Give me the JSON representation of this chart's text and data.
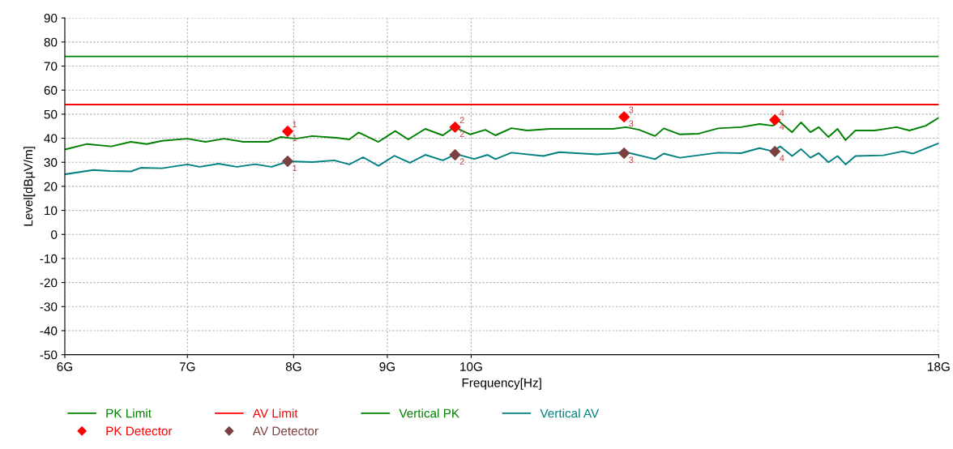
{
  "chart_data": {
    "type": "line",
    "xlabel": "Frequency[Hz]",
    "ylabel": "Level[dBµV/m]",
    "log": "x",
    "grid": true,
    "legend": "bottom",
    "xlim": [
      6,
      18
    ],
    "xticks": [
      {
        "value": 6,
        "label": "6G"
      },
      {
        "value": 7,
        "label": "7G"
      },
      {
        "value": 8,
        "label": "8G"
      },
      {
        "value": 9,
        "label": "9G"
      },
      {
        "value": 10,
        "label": "10G"
      },
      {
        "value": 18,
        "label": "18G"
      }
    ],
    "ylim": [
      -50,
      90
    ],
    "yticks": [
      -50,
      -40,
      -30,
      -20,
      -10,
      0,
      10,
      20,
      30,
      40,
      50,
      60,
      70,
      80,
      90
    ],
    "series": [
      {
        "name": "PK Limit",
        "color": "#008000",
        "x": [
          6,
          18
        ],
        "values": [
          74,
          74
        ]
      },
      {
        "name": "AV Limit",
        "color": "#ff0000",
        "x": [
          6,
          18
        ],
        "values": [
          54,
          54
        ]
      },
      {
        "name": "Vertical PK",
        "color": "#008000",
        "x": [
          6.0,
          6.17,
          6.36,
          6.52,
          6.65,
          6.78,
          7.0,
          7.16,
          7.33,
          7.51,
          7.75,
          7.87,
          8.02,
          8.19,
          8.44,
          8.58,
          8.68,
          8.9,
          9.09,
          9.24,
          9.44,
          9.65,
          9.79,
          9.99,
          10.18,
          10.31,
          10.52,
          10.73,
          11.04,
          11.48,
          11.95,
          12.15,
          12.35,
          12.6,
          12.74,
          13.0,
          13.31,
          13.64,
          14.04,
          14.37,
          14.61,
          14.72,
          14.97,
          15.14,
          15.32,
          15.48,
          15.67,
          15.85,
          16.01,
          16.21,
          16.61,
          17.07,
          17.35,
          17.71,
          18.0
        ],
        "values": [
          35.3,
          37.6,
          36.6,
          38.5,
          37.6,
          38.9,
          39.8,
          38.5,
          39.8,
          38.5,
          38.5,
          40.5,
          39.8,
          40.9,
          40.2,
          39.5,
          42.4,
          38.5,
          43.0,
          39.5,
          43.9,
          41.2,
          44.6,
          41.6,
          43.5,
          41.2,
          44.2,
          43.2,
          43.9,
          43.9,
          43.9,
          44.6,
          43.5,
          40.9,
          44.1,
          41.6,
          41.9,
          44.1,
          44.6,
          45.9,
          45.2,
          47.2,
          42.5,
          46.6,
          42.5,
          44.6,
          40.5,
          43.9,
          39.2,
          43.2,
          43.2,
          44.6,
          43.2,
          45.2,
          48.5
        ]
      },
      {
        "name": "Vertical AV",
        "color": "#008080",
        "x": [
          6.0,
          6.22,
          6.35,
          6.52,
          6.6,
          6.78,
          7.0,
          7.11,
          7.28,
          7.45,
          7.62,
          7.78,
          7.95,
          8.19,
          8.42,
          8.58,
          8.73,
          8.9,
          9.08,
          9.26,
          9.44,
          9.65,
          9.81,
          10.04,
          10.21,
          10.31,
          10.52,
          10.95,
          11.17,
          11.72,
          12.15,
          12.6,
          12.74,
          13.0,
          13.64,
          14.04,
          14.37,
          14.61,
          14.75,
          14.97,
          15.14,
          15.32,
          15.48,
          15.67,
          15.85,
          16.01,
          16.21,
          16.79,
          17.21,
          17.42,
          18.0
        ],
        "values": [
          25.0,
          26.8,
          26.4,
          26.2,
          27.7,
          27.5,
          29.1,
          28.1,
          29.4,
          28.1,
          29.2,
          28.1,
          30.4,
          30.1,
          30.8,
          29.1,
          32.1,
          28.5,
          32.7,
          29.8,
          33.1,
          30.8,
          33.4,
          31.4,
          33.1,
          31.3,
          34.0,
          32.6,
          34.2,
          33.3,
          34.2,
          31.3,
          33.6,
          31.9,
          34.0,
          33.8,
          35.9,
          34.6,
          36.6,
          32.6,
          35.5,
          31.9,
          33.8,
          30.0,
          32.6,
          29.1,
          32.6,
          32.9,
          34.6,
          33.6,
          37.9
        ]
      },
      {
        "name": "PK Detector",
        "type": "scatter",
        "marker": "diamond",
        "color": "#ff0000",
        "x": [
          7.94,
          9.8,
          12.12,
          14.65
        ],
        "values": [
          42.9,
          44.6,
          48.9,
          47.6
        ]
      },
      {
        "name": "AV Detector",
        "type": "scatter",
        "marker": "diamond",
        "color": "#7b4040",
        "x": [
          7.94,
          9.8,
          12.12,
          14.65
        ],
        "values": [
          30.4,
          33.1,
          33.8,
          34.5
        ]
      }
    ],
    "annotations": [
      {
        "text": "1",
        "x": 7.94,
        "y": 45.5
      },
      {
        "text": "2",
        "x": 9.8,
        "y": 47.2
      },
      {
        "text": "3",
        "x": 12.12,
        "y": 51.5
      },
      {
        "text": "4",
        "x": 14.65,
        "y": 50.2
      },
      {
        "text": "1",
        "x": 7.94,
        "y": 39.8
      },
      {
        "text": "2",
        "x": 9.8,
        "y": 41.5
      },
      {
        "text": "3",
        "x": 12.12,
        "y": 45.8
      },
      {
        "text": "4",
        "x": 14.65,
        "y": 44.5
      },
      {
        "text": "1",
        "x": 7.94,
        "y": 27.3
      },
      {
        "text": "2",
        "x": 9.8,
        "y": 30.0
      },
      {
        "text": "3",
        "x": 12.12,
        "y": 30.7
      },
      {
        "text": "4",
        "x": 14.65,
        "y": 31.4
      }
    ]
  }
}
